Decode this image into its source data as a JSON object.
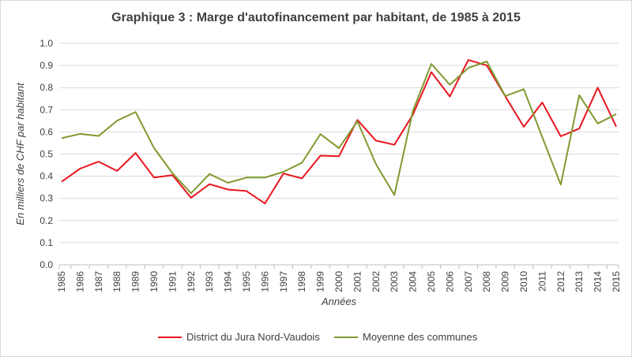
{
  "chart_data": {
    "type": "line",
    "title": "Graphique 3 : Marge d'autofinancement par habitant, de 1985 à 2015",
    "xlabel": "Années",
    "ylabel": "En milliers de CHF par habitant",
    "ylim": [
      0,
      1.0
    ],
    "yticks": [
      "0.0",
      "0.1",
      "0.2",
      "0.3",
      "0.4",
      "0.5",
      "0.6",
      "0.7",
      "0.8",
      "0.9",
      "1.0"
    ],
    "grid": true,
    "legend_position": "bottom",
    "x": [
      "1985",
      "1986",
      "1987",
      "1988",
      "1989",
      "1990",
      "1991",
      "1992",
      "1993",
      "1994",
      "1995",
      "1996",
      "1997",
      "1998",
      "1999",
      "2000",
      "2001",
      "2002",
      "2003",
      "2004",
      "2005",
      "2006",
      "2007",
      "2008",
      "2009",
      "2010",
      "2011",
      "2012",
      "2013",
      "2014",
      "2015"
    ],
    "series": [
      {
        "name": "District du Jura Nord-Vaudois",
        "color": "#e8161e",
        "values": [
          0.375,
          0.434,
          0.466,
          0.424,
          0.505,
          0.394,
          0.405,
          0.303,
          0.364,
          0.34,
          0.333,
          0.277,
          0.412,
          0.39,
          0.493,
          0.49,
          0.654,
          0.561,
          0.542,
          0.678,
          0.87,
          0.76,
          0.925,
          0.9,
          0.761,
          0.623,
          0.733,
          0.58,
          0.615,
          0.8,
          0.624
        ]
      },
      {
        "name": "Moyenne des communes",
        "color": "#7f9a2f",
        "values": [
          0.572,
          0.591,
          0.582,
          0.651,
          0.69,
          0.527,
          0.413,
          0.323,
          0.41,
          0.37,
          0.394,
          0.394,
          0.42,
          0.461,
          0.59,
          0.527,
          0.648,
          0.455,
          0.315,
          0.695,
          0.907,
          0.813,
          0.889,
          0.918,
          0.762,
          0.793,
          0.577,
          0.362,
          0.766,
          0.638,
          0.68
        ]
      }
    ]
  }
}
